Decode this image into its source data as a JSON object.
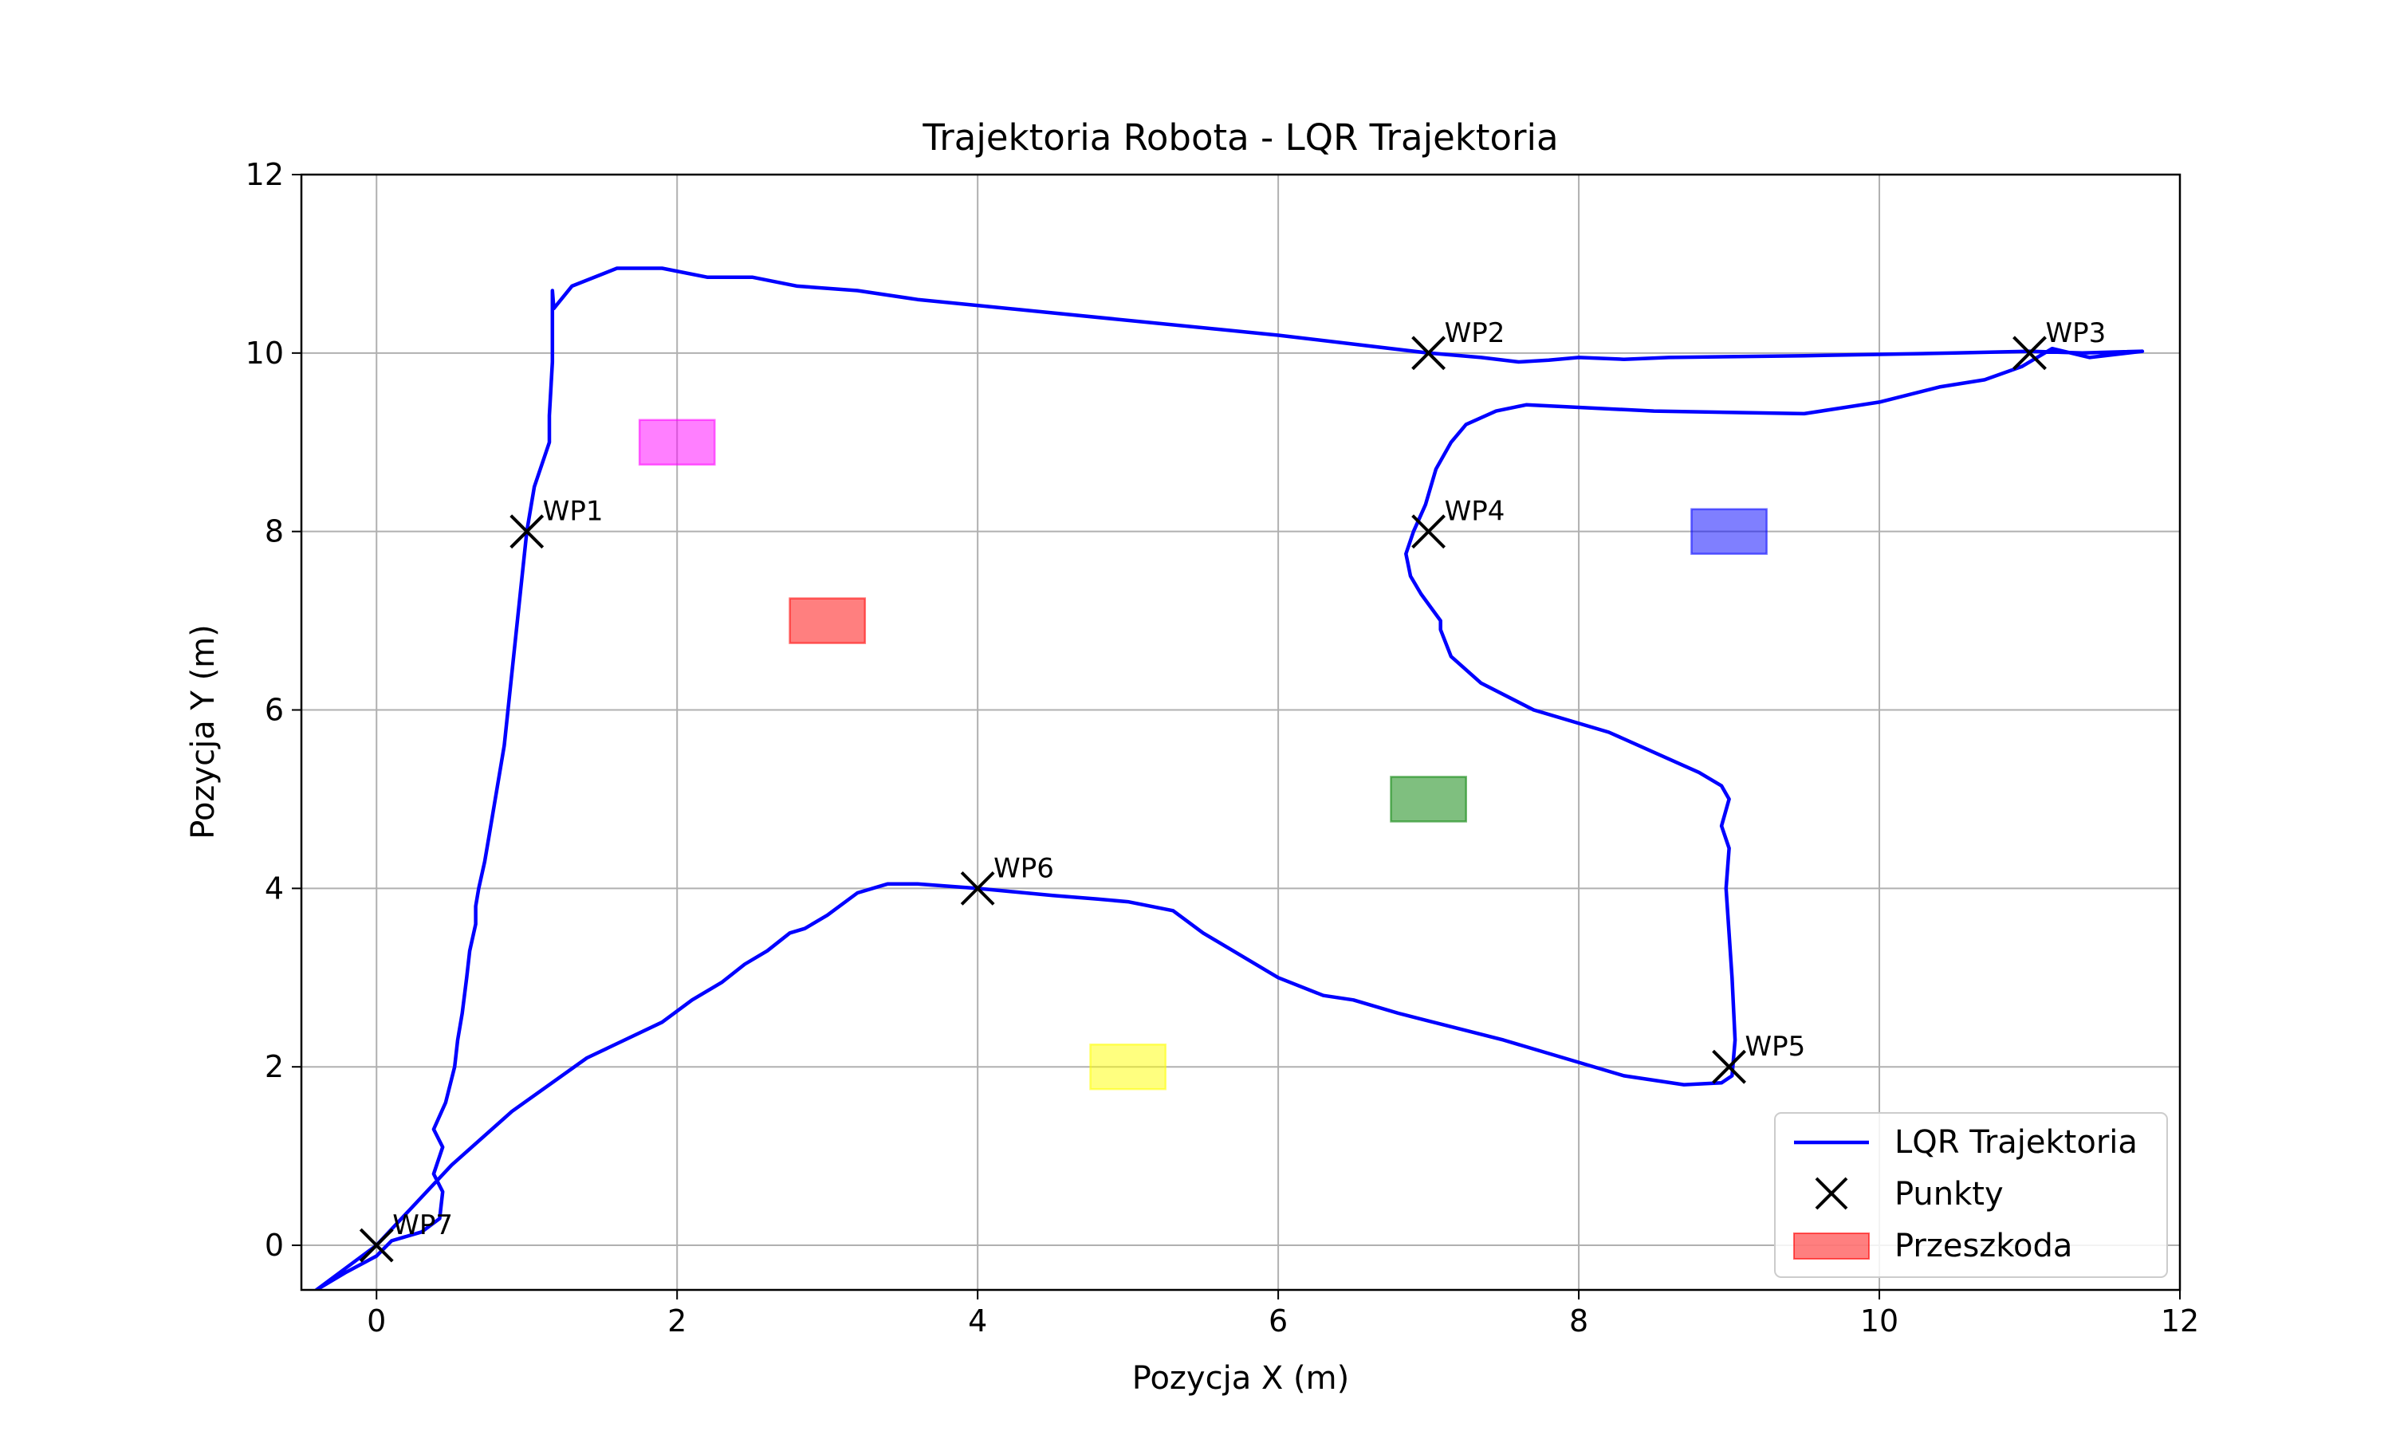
{
  "chart_data": {
    "type": "line",
    "title": "Trajektoria Robota - LQR Trajektoria",
    "xlabel": "Pozycja X (m)",
    "ylabel": "Pozycja Y (m)",
    "xlim": [
      -0.5,
      12
    ],
    "ylim": [
      -0.5,
      12
    ],
    "xticks": [
      0,
      2,
      4,
      6,
      8,
      10,
      12
    ],
    "yticks": [
      0,
      2,
      4,
      6,
      8,
      10,
      12
    ],
    "xtick_labels": [
      "0",
      "2",
      "4",
      "6",
      "8",
      "10",
      "12"
    ],
    "ytick_labels": [
      "0",
      "2",
      "4",
      "6",
      "8",
      "10",
      "12"
    ],
    "grid": true,
    "legend_position": "lower-right",
    "legend": [
      {
        "label": "LQR Trajektoria",
        "kind": "line",
        "color": "#0000ff"
      },
      {
        "label": "Punkty",
        "kind": "marker",
        "color": "#000000"
      },
      {
        "label": "Przeszkoda",
        "kind": "patch",
        "color": "#ff0000"
      }
    ],
    "trajectory": {
      "name": "LQR Trajektoria",
      "color": "#0000ff",
      "points": [
        [
          -0.4,
          -0.5
        ],
        [
          -0.2,
          -0.3
        ],
        [
          0.0,
          -0.12
        ],
        [
          0.1,
          0.05
        ],
        [
          0.3,
          0.15
        ],
        [
          0.42,
          0.3
        ],
        [
          0.44,
          0.6
        ],
        [
          0.38,
          0.8
        ],
        [
          0.44,
          1.1
        ],
        [
          0.38,
          1.3
        ],
        [
          0.46,
          1.6
        ],
        [
          0.52,
          2.0
        ],
        [
          0.54,
          2.3
        ],
        [
          0.57,
          2.6
        ],
        [
          0.6,
          3.0
        ],
        [
          0.62,
          3.3
        ],
        [
          0.66,
          3.6
        ],
        [
          0.66,
          3.8
        ],
        [
          0.68,
          4.0
        ],
        [
          0.72,
          4.3
        ],
        [
          0.75,
          4.6
        ],
        [
          0.85,
          5.6
        ],
        [
          1.0,
          8.0
        ],
        [
          1.05,
          8.5
        ],
        [
          1.15,
          9.0
        ],
        [
          1.15,
          9.3
        ],
        [
          1.17,
          9.9
        ],
        [
          1.17,
          10.7
        ],
        [
          1.18,
          10.5
        ],
        [
          1.3,
          10.75
        ],
        [
          1.6,
          10.95
        ],
        [
          1.9,
          10.95
        ],
        [
          2.2,
          10.85
        ],
        [
          2.5,
          10.85
        ],
        [
          2.8,
          10.75
        ],
        [
          3.2,
          10.7
        ],
        [
          3.6,
          10.6
        ],
        [
          4.5,
          10.45
        ],
        [
          6.0,
          10.2
        ],
        [
          7.0,
          10.0
        ],
        [
          7.35,
          9.95
        ],
        [
          7.6,
          9.9
        ],
        [
          7.8,
          9.92
        ],
        [
          8.0,
          9.95
        ],
        [
          8.3,
          9.93
        ],
        [
          8.6,
          9.95
        ],
        [
          9.5,
          9.97
        ],
        [
          10.5,
          10.0
        ],
        [
          11.0,
          10.02
        ],
        [
          11.35,
          10.0
        ],
        [
          11.75,
          10.02
        ],
        [
          11.4,
          9.95
        ],
        [
          11.15,
          10.05
        ],
        [
          10.95,
          9.85
        ],
        [
          10.7,
          9.7
        ],
        [
          10.4,
          9.62
        ],
        [
          10.0,
          9.45
        ],
        [
          9.5,
          9.32
        ],
        [
          8.5,
          9.35
        ],
        [
          7.65,
          9.42
        ],
        [
          7.45,
          9.35
        ],
        [
          7.25,
          9.2
        ],
        [
          7.15,
          9.0
        ],
        [
          7.05,
          8.7
        ],
        [
          6.98,
          8.3
        ],
        [
          6.9,
          8.0
        ],
        [
          6.85,
          7.75
        ],
        [
          6.88,
          7.5
        ],
        [
          6.95,
          7.3
        ],
        [
          7.08,
          7.0
        ],
        [
          7.08,
          6.9
        ],
        [
          7.15,
          6.6
        ],
        [
          7.35,
          6.3
        ],
        [
          7.7,
          6.0
        ],
        [
          8.2,
          5.75
        ],
        [
          8.8,
          5.3
        ],
        [
          8.95,
          5.15
        ],
        [
          9.0,
          5.0
        ],
        [
          8.95,
          4.7
        ],
        [
          9.0,
          4.45
        ],
        [
          8.98,
          4.0
        ],
        [
          9.02,
          3.0
        ],
        [
          9.04,
          2.3
        ],
        [
          9.02,
          1.9
        ],
        [
          8.95,
          1.82
        ],
        [
          8.7,
          1.8
        ],
        [
          8.5,
          1.85
        ],
        [
          8.3,
          1.9
        ],
        [
          8.0,
          2.05
        ],
        [
          7.5,
          2.3
        ],
        [
          6.8,
          2.6
        ],
        [
          6.5,
          2.75
        ],
        [
          6.3,
          2.8
        ],
        [
          6.0,
          3.0
        ],
        [
          5.7,
          3.3
        ],
        [
          5.5,
          3.5
        ],
        [
          5.3,
          3.75
        ],
        [
          5.0,
          3.85
        ],
        [
          4.8,
          3.88
        ],
        [
          4.5,
          3.92
        ],
        [
          4.0,
          4.0
        ],
        [
          3.6,
          4.05
        ],
        [
          3.4,
          4.05
        ],
        [
          3.2,
          3.95
        ],
        [
          3.0,
          3.7
        ],
        [
          2.85,
          3.55
        ],
        [
          2.75,
          3.5
        ],
        [
          2.6,
          3.3
        ],
        [
          2.45,
          3.15
        ],
        [
          2.3,
          2.95
        ],
        [
          2.1,
          2.75
        ],
        [
          1.9,
          2.5
        ],
        [
          1.4,
          2.1
        ],
        [
          0.9,
          1.5
        ],
        [
          0.5,
          0.9
        ],
        [
          0.0,
          0.0
        ],
        [
          -0.4,
          -0.5
        ]
      ]
    },
    "waypoints": [
      {
        "label": "WP1",
        "x": 1,
        "y": 8
      },
      {
        "label": "WP2",
        "x": 7,
        "y": 10
      },
      {
        "label": "WP3",
        "x": 11,
        "y": 10
      },
      {
        "label": "WP4",
        "x": 7,
        "y": 8
      },
      {
        "label": "WP5",
        "x": 9,
        "y": 2
      },
      {
        "label": "WP6",
        "x": 4,
        "y": 4
      },
      {
        "label": "WP7",
        "x": 0,
        "y": 0
      }
    ],
    "obstacles": [
      {
        "x": 2,
        "y": 9,
        "w": 0.5,
        "h": 0.5,
        "color": "#ff00ff"
      },
      {
        "x": 3,
        "y": 7,
        "w": 0.5,
        "h": 0.5,
        "color": "#ff0000"
      },
      {
        "x": 9,
        "y": 8,
        "w": 0.5,
        "h": 0.5,
        "color": "#0000ff"
      },
      {
        "x": 7,
        "y": 5,
        "w": 0.5,
        "h": 0.5,
        "color": "#008000"
      },
      {
        "x": 5,
        "y": 2,
        "w": 0.5,
        "h": 0.5,
        "color": "#ffff00"
      }
    ]
  }
}
